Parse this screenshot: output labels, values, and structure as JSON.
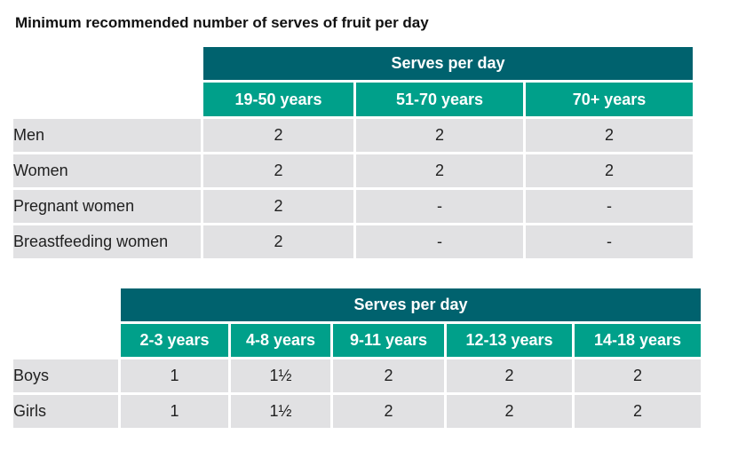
{
  "title": "Minimum recommended number of serves of fruit per day",
  "adults_table": {
    "group_header": "Serves per day",
    "columns": [
      "19-50 years",
      "51-70 years",
      "70+ years"
    ],
    "rows": [
      {
        "label": "Men",
        "values": [
          "2",
          "2",
          "2"
        ]
      },
      {
        "label": "Women",
        "values": [
          "2",
          "2",
          "2"
        ]
      },
      {
        "label": "Pregnant women",
        "values": [
          "2",
          "-",
          "-"
        ]
      },
      {
        "label": "Breastfeeding women",
        "values": [
          "2",
          "-",
          "-"
        ]
      }
    ]
  },
  "children_table": {
    "group_header": "Serves per day",
    "columns": [
      "2-3 years",
      "4-8 years",
      "9-11 years",
      "12-13 years",
      "14-18 years"
    ],
    "rows": [
      {
        "label": "Boys",
        "values": [
          "1",
          "1½",
          "2",
          "2",
          "2"
        ]
      },
      {
        "label": "Girls",
        "values": [
          "1",
          "1½",
          "2",
          "2",
          "2"
        ]
      }
    ]
  },
  "colors": {
    "group_header_bg": "#00626e",
    "column_header_bg": "#00a08a",
    "cell_bg": "#e1e1e3"
  }
}
